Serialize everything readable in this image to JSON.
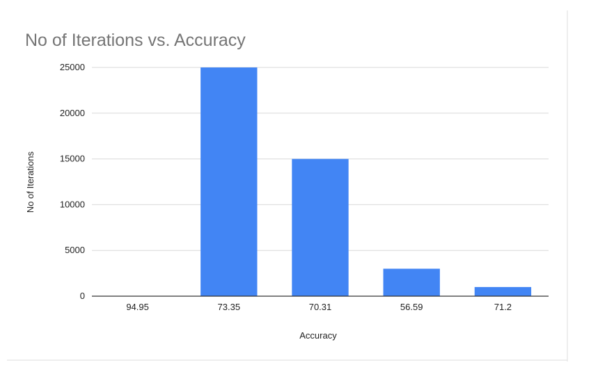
{
  "chart_data": {
    "type": "bar",
    "title": "No of Iterations vs. Accuracy",
    "xlabel": "Accuracy",
    "ylabel": "No of Iterations",
    "categories": [
      "94.95",
      "73.35",
      "70.31",
      "56.59",
      "71.2"
    ],
    "series": [
      {
        "values": [
          0,
          25000,
          15000,
          3000,
          1000
        ],
        "color": "#4285f4"
      }
    ],
    "ylim": [
      0,
      25000
    ],
    "yticks": [
      "0",
      "5000",
      "10000",
      "15000",
      "20000",
      "25000"
    ],
    "grid": true,
    "legend": "none"
  },
  "colors": {
    "bar": "#4285f4",
    "gridline": "#d9d9d9",
    "axis": "#333333",
    "title": "#757575"
  }
}
